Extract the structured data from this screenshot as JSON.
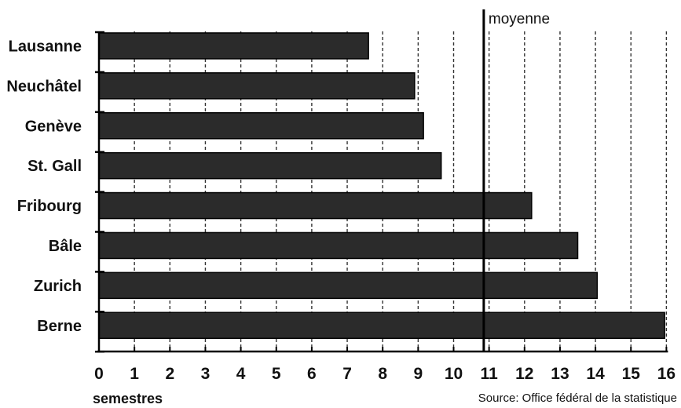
{
  "chart_data": {
    "type": "bar",
    "orientation": "horizontal",
    "categories": [
      "Lausanne",
      "Neuchâtel",
      "Genève",
      "St. Gall",
      "Fribourg",
      "Bâle",
      "Zurich",
      "Berne"
    ],
    "values": [
      7.6,
      8.9,
      9.15,
      9.65,
      12.2,
      13.5,
      14.05,
      15.95
    ],
    "xlabel": "semestres",
    "xlim": [
      0,
      16
    ],
    "xticks": [
      "0",
      "1",
      "2",
      "3",
      "4",
      "5",
      "6",
      "7",
      "8",
      "9",
      "10",
      "11",
      "12",
      "13",
      "14",
      "15",
      "16"
    ],
    "reference_line": {
      "label": "moyenne",
      "value": 10.85
    },
    "source": "Source: Office fédéral de la statistique",
    "grid": true,
    "bar_color": "#2b2b2b"
  }
}
